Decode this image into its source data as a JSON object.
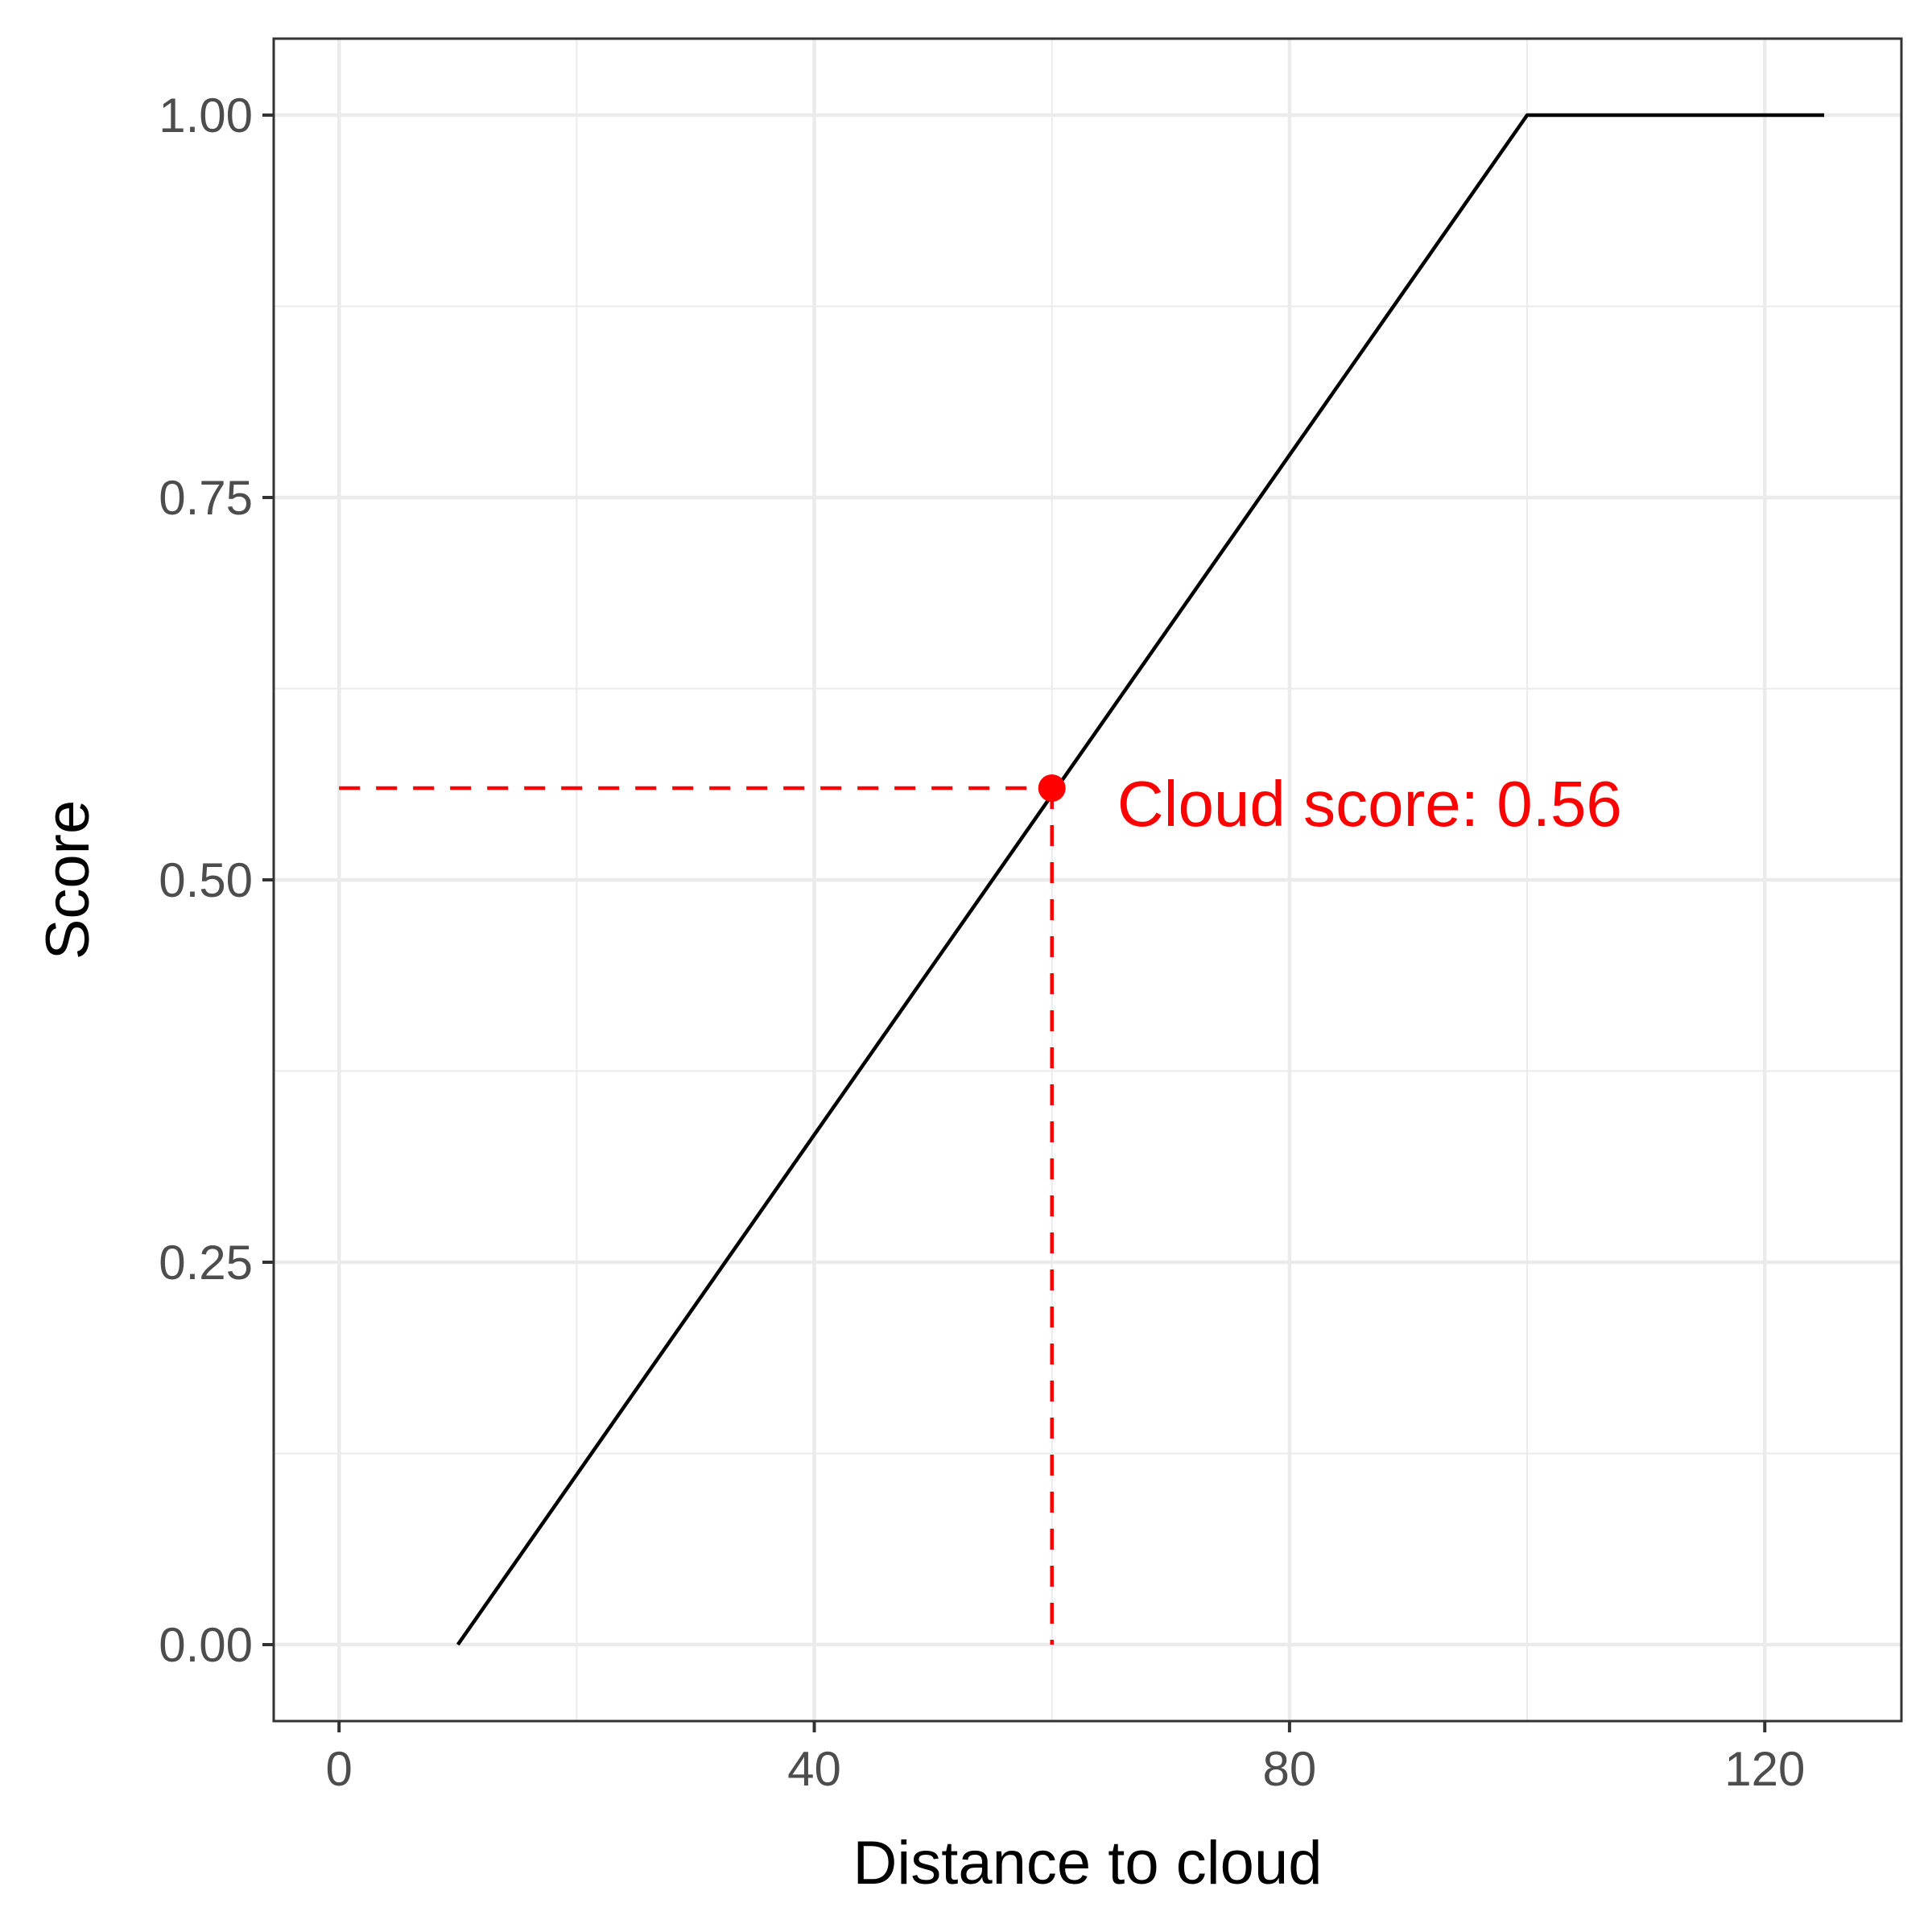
{
  "chart_data": {
    "type": "line",
    "title": "",
    "xlabel": "Distance to cloud",
    "ylabel": "Score",
    "xlim": [
      -5.5,
      131.5
    ],
    "ylim": [
      -0.05,
      1.05
    ],
    "x_ticks": [
      0,
      40,
      80,
      120
    ],
    "x_tick_labels": [
      "0",
      "40",
      "80",
      "120"
    ],
    "x_minor_ticks": [
      20,
      60,
      100
    ],
    "y_ticks": [
      0,
      0.25,
      0.5,
      0.75,
      1.0
    ],
    "y_tick_labels": [
      "0.00",
      "0.25",
      "0.50",
      "0.75",
      "1.00"
    ],
    "y_minor_ticks": [
      0.125,
      0.375,
      0.625,
      0.875
    ],
    "grid": true,
    "series": [
      {
        "x": [
          10,
          100,
          125
        ],
        "y": [
          0,
          1,
          1
        ],
        "color": "#000000"
      }
    ],
    "highlight_point": {
      "x": 60,
      "y": 0.56,
      "color": "#ff0000"
    },
    "guide_lines": {
      "horizontal": {
        "x_from": 0,
        "x_to": 60,
        "y": 0.56
      },
      "vertical": {
        "x": 60,
        "y_from": 0,
        "y_to": 0.56
      },
      "color": "#ff0000",
      "style": "dashed"
    },
    "annotation": {
      "text": "Cloud score: 0.56",
      "x": 65.5,
      "y": 0.55,
      "color": "#ff0000"
    }
  }
}
